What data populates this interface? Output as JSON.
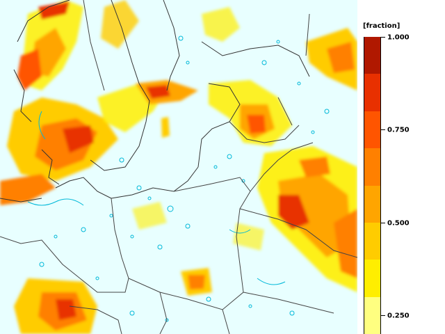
{
  "legend": {
    "unit": "[fraction]",
    "ticks": [
      {
        "value": 1.0,
        "label": "1.000"
      },
      {
        "value": 0.75,
        "label": "0.750"
      },
      {
        "value": 0.5,
        "label": "0.500"
      },
      {
        "value": 0.25,
        "label": "0.250"
      }
    ],
    "scale_min": 0.2,
    "scale_max": 1.0,
    "bins": [
      {
        "from": 0.2,
        "to": 0.3,
        "color": "#ffff80"
      },
      {
        "from": 0.3,
        "to": 0.4,
        "color": "#ffee00"
      },
      {
        "from": 0.4,
        "to": 0.5,
        "color": "#ffcc00"
      },
      {
        "from": 0.5,
        "to": 0.6,
        "color": "#ffa500"
      },
      {
        "from": 0.6,
        "to": 0.7,
        "color": "#ff8000"
      },
      {
        "from": 0.7,
        "to": 0.8,
        "color": "#ff5500"
      },
      {
        "from": 0.8,
        "to": 0.9,
        "color": "#e83000"
      },
      {
        "from": 0.9,
        "to": 1.0,
        "color": "#b01800"
      }
    ]
  },
  "map": {
    "background_color": "#e8ffff",
    "contour_color": "#00b8d8",
    "border_color": "#333333"
  }
}
